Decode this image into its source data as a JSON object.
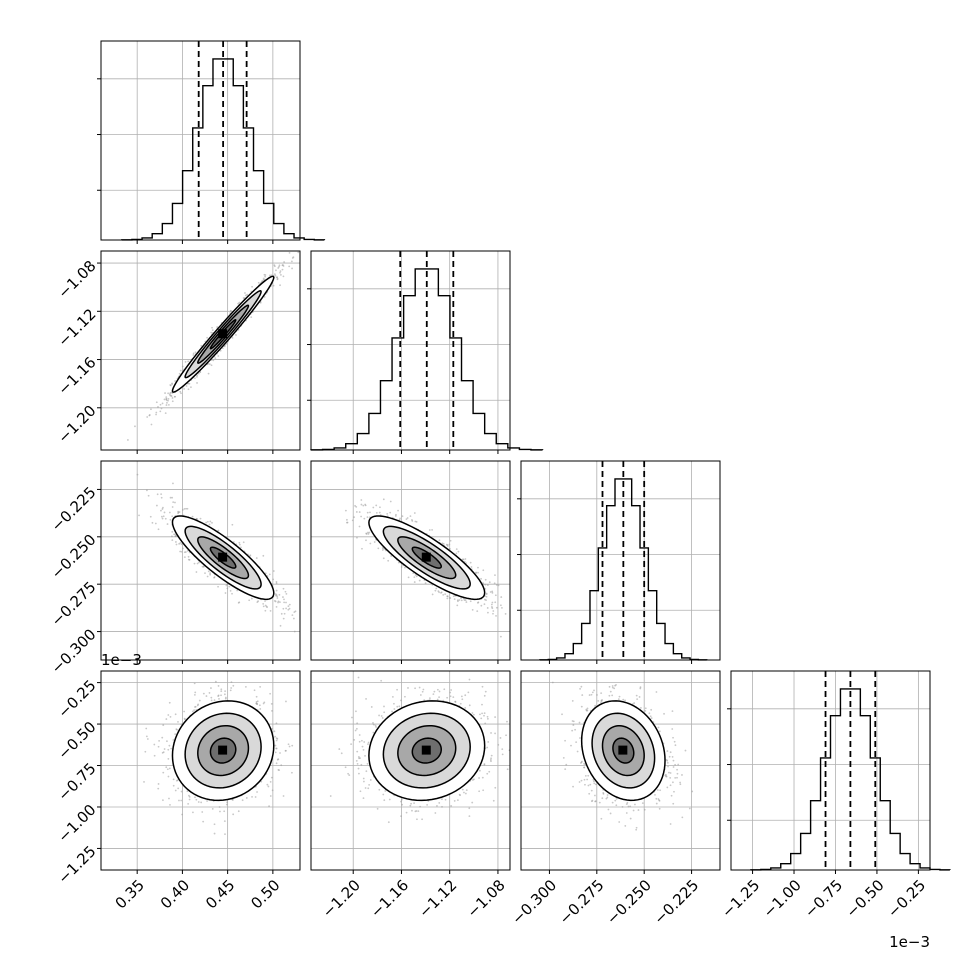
{
  "chart_data": {
    "type": "corner-plot",
    "grid": true,
    "colors": {
      "line": "#000000",
      "grid": "#b0b0b0",
      "scatter": "#9a9a9a",
      "frame": "#000000"
    },
    "parameters": [
      {
        "index": 0,
        "mean": 0.445,
        "std": 0.028,
        "quantiles": [
          0.418,
          0.445,
          0.471
        ],
        "range": [
          0.31,
          0.53
        ],
        "ticks": [
          0.35,
          0.4,
          0.45,
          0.5
        ],
        "tick_labels": [
          "0.35",
          "0.40",
          "0.45",
          "0.50"
        ],
        "offset_text": ""
      },
      {
        "index": 1,
        "mean": -1.139,
        "std": 0.024,
        "quantiles": [
          -1.161,
          -1.139,
          -1.117
        ],
        "range": [
          -1.235,
          -1.07
        ],
        "ticks": [
          -1.2,
          -1.16,
          -1.12,
          -1.08
        ],
        "tick_labels": [
          "−1.20",
          "−1.16",
          "−1.12",
          "−1.08"
        ],
        "offset_text": ""
      },
      {
        "index": 2,
        "mean": -0.261,
        "std": 0.011,
        "quantiles": [
          -0.272,
          -0.261,
          -0.25
        ],
        "range": [
          -0.315,
          -0.21
        ],
        "ticks": [
          -0.3,
          -0.275,
          -0.25,
          -0.225
        ],
        "tick_labels": [
          "−0.300",
          "−0.275",
          "−0.250",
          "−0.225"
        ],
        "offset_text": ""
      },
      {
        "index": 3,
        "mean": -0.66,
        "std": 0.15,
        "quantiles": [
          -0.81,
          -0.66,
          -0.51
        ],
        "range": [
          -1.38,
          -0.18
        ],
        "ticks": [
          -1.25,
          -1.0,
          -0.75,
          -0.5,
          -0.25
        ],
        "tick_labels": [
          "−1.25",
          "−1.00",
          "−0.75",
          "−0.50",
          "−0.25"
        ],
        "offset_text": "1e−3"
      }
    ],
    "correlations": {
      "0-1": 0.98,
      "0-2": -0.85,
      "1-2": -0.84,
      "0-3": 0.1,
      "1-3": 0.1,
      "2-3": -0.2
    },
    "histogram_bins": 20,
    "contour_levels_sigma": [
      0.5,
      1.0,
      1.5,
      2.0
    ]
  }
}
